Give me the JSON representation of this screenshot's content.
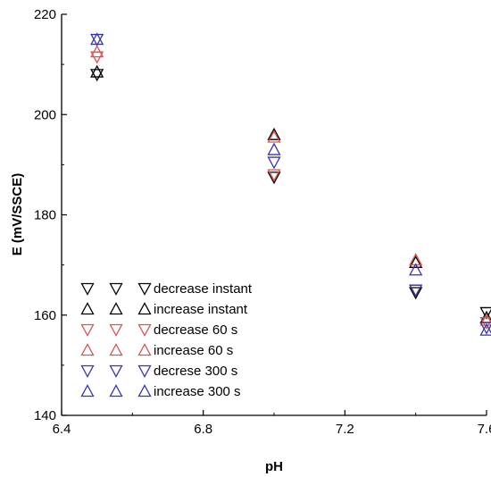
{
  "chart_data": {
    "type": "scatter",
    "xlabel": "pH",
    "ylabel": "E (mV/SSCE)",
    "xlim": [
      6.4,
      7.6
    ],
    "ylim": [
      140,
      220
    ],
    "xticks": [
      "6.4",
      "6.8",
      "7.2",
      "7.6"
    ],
    "yticks": [
      "140",
      "160",
      "180",
      "200",
      "220"
    ],
    "grid": false,
    "legend_position": "bottom-left",
    "series": [
      {
        "name": "decrease instant",
        "color": "#000000",
        "marker": "triangle-down",
        "x": [
          6.5,
          7.0,
          7.4,
          7.6
        ],
        "y": [
          208,
          187.5,
          164.5,
          160.5
        ]
      },
      {
        "name": "increase instant",
        "color": "#000000",
        "marker": "triangle-up",
        "x": [
          6.5,
          7.0,
          7.4,
          7.6
        ],
        "y": [
          208.5,
          196,
          170.5,
          159.5
        ]
      },
      {
        "name": "decrease 60 s",
        "color": "#d9534f",
        "marker": "triangle-down",
        "x": [
          6.5,
          7.0,
          7.4,
          7.6
        ],
        "y": [
          211.5,
          188,
          165,
          158.5
        ]
      },
      {
        "name": "increase 60 s",
        "color": "#d9534f",
        "marker": "triangle-up",
        "x": [
          6.5,
          7.0,
          7.4,
          7.6
        ],
        "y": [
          212.5,
          195.5,
          171,
          159
        ]
      },
      {
        "name": "decrese 300 s",
        "color": "#3333b3",
        "marker": "triangle-down",
        "x": [
          6.5,
          7.0,
          7.4,
          7.6
        ],
        "y": [
          215,
          190.5,
          165,
          157.5
        ]
      },
      {
        "name": "increase 300 s",
        "color": "#3333b3",
        "marker": "triangle-up",
        "x": [
          6.5,
          7.0,
          7.4,
          7.6
        ],
        "y": [
          215,
          193,
          169,
          157
        ]
      }
    ]
  }
}
